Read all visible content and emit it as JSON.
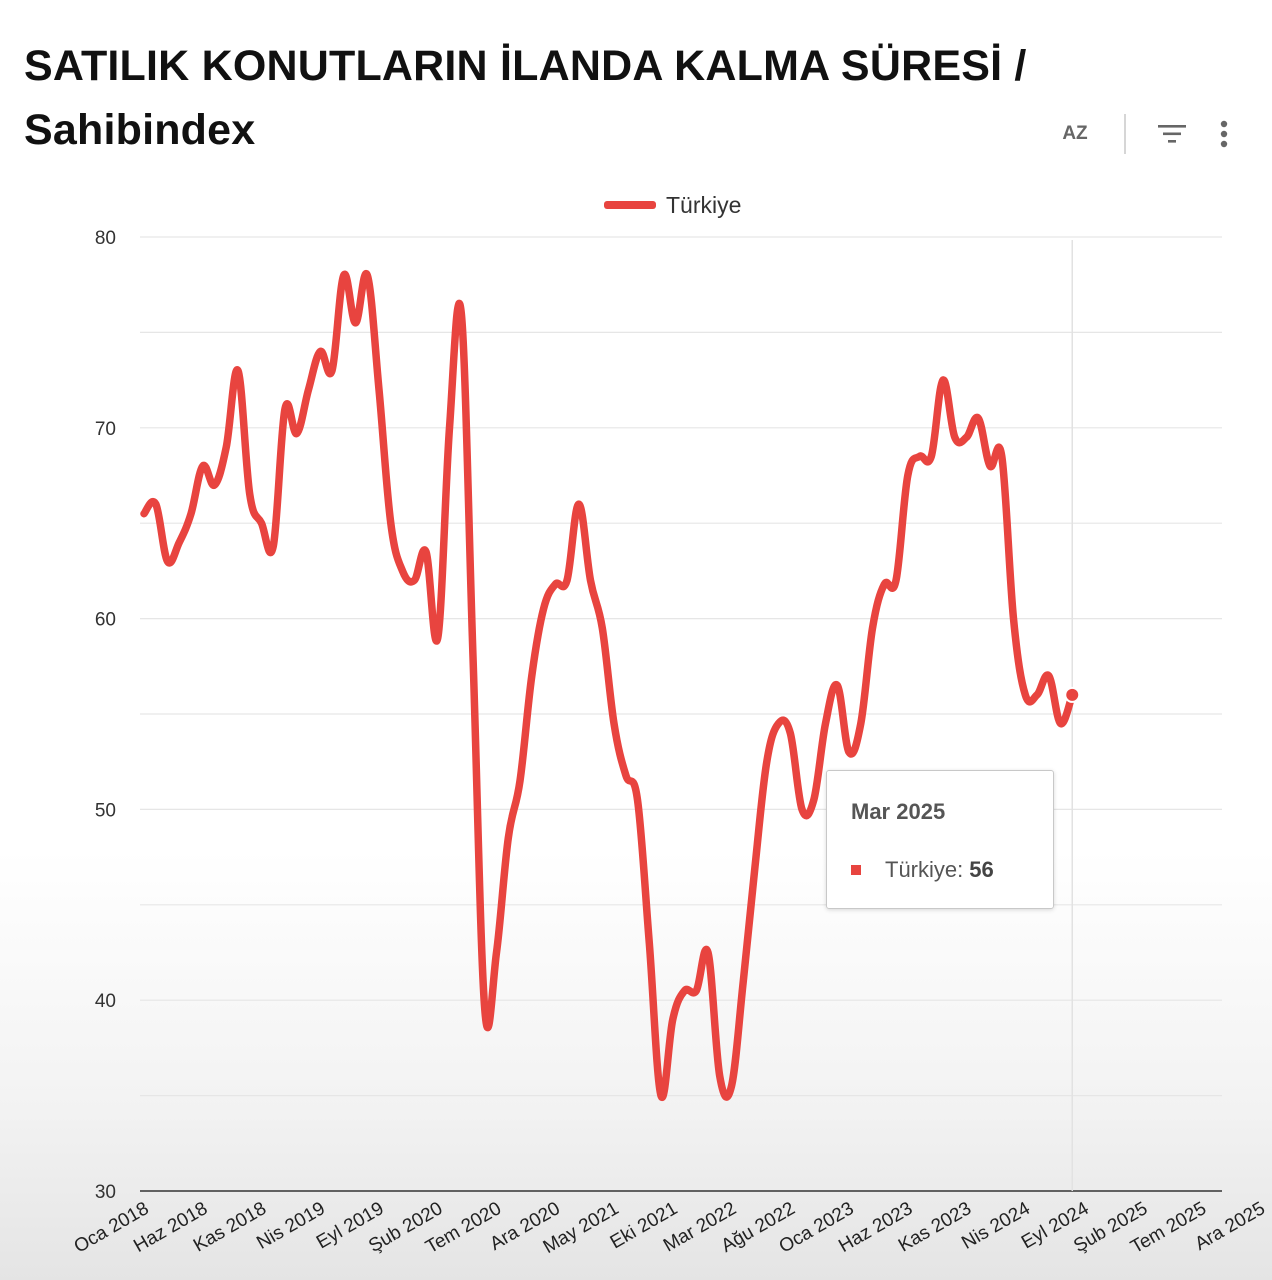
{
  "title": "SATILIK KONUTLARIN İLANDA KALMA SÜRESİ / Sahibindex",
  "toolbar": {
    "sort_icon": "sort-az-icon",
    "sort_label": "AZ",
    "filter_icon": "filter-icon",
    "more_icon": "more-vertical-icon"
  },
  "tooltip": {
    "title": "Mar 2025",
    "series_label": "Türkiye:",
    "value": "56"
  },
  "chart_data": {
    "type": "line",
    "title": "SATILIK KONUTLARIN İLANDA KALMA SÜRESİ / Sahibindex",
    "xlabel": "",
    "ylabel": "",
    "ylim": [
      30,
      80
    ],
    "yticks": [
      30,
      40,
      50,
      60,
      70,
      80
    ],
    "grid": true,
    "legend": "top-center",
    "x_tick_labels": [
      "Oca 2018",
      "Haz 2018",
      "Kas 2018",
      "Nis 2019",
      "Eyl 2019",
      "Şub 2020",
      "Tem 2020",
      "Ara 2020",
      "May 2021",
      "Eki 2021",
      "Mar 2022",
      "Ağu 2022",
      "Oca 2023",
      "Haz 2023",
      "Kas 2023",
      "Nis 2024",
      "Eyl 2024",
      "Şub 2025",
      "Tem 2025",
      "Ara 2025"
    ],
    "x_start": "Oca 2018",
    "colors": {
      "line": "#e8443f"
    },
    "series": [
      {
        "name": "Türkiye",
        "color": "#e8443f",
        "values": [
          65.5,
          66,
          63,
          64,
          65.5,
          68,
          67,
          69,
          73,
          66.5,
          65,
          63.8,
          71,
          69.7,
          72,
          74,
          73,
          78,
          75.5,
          78,
          72,
          65,
          62.5,
          62,
          63.5,
          59,
          70,
          76,
          58,
          39.5,
          42.5,
          48.5,
          51.5,
          57,
          60.5,
          61.8,
          62,
          66,
          62,
          59.5,
          54.5,
          51.8,
          50.5,
          43,
          35,
          39,
          40.5,
          40.5,
          42.5,
          36,
          35.5,
          41,
          47,
          52.5,
          54.5,
          54,
          50,
          50.5,
          54.5,
          56.5,
          53,
          54.5,
          59.5,
          61.8,
          62,
          67.5,
          68.5,
          68.5,
          72.5,
          69.5,
          69.5,
          70.5,
          68,
          68.5,
          60,
          56,
          56,
          57,
          54.5,
          56
        ]
      }
    ]
  }
}
